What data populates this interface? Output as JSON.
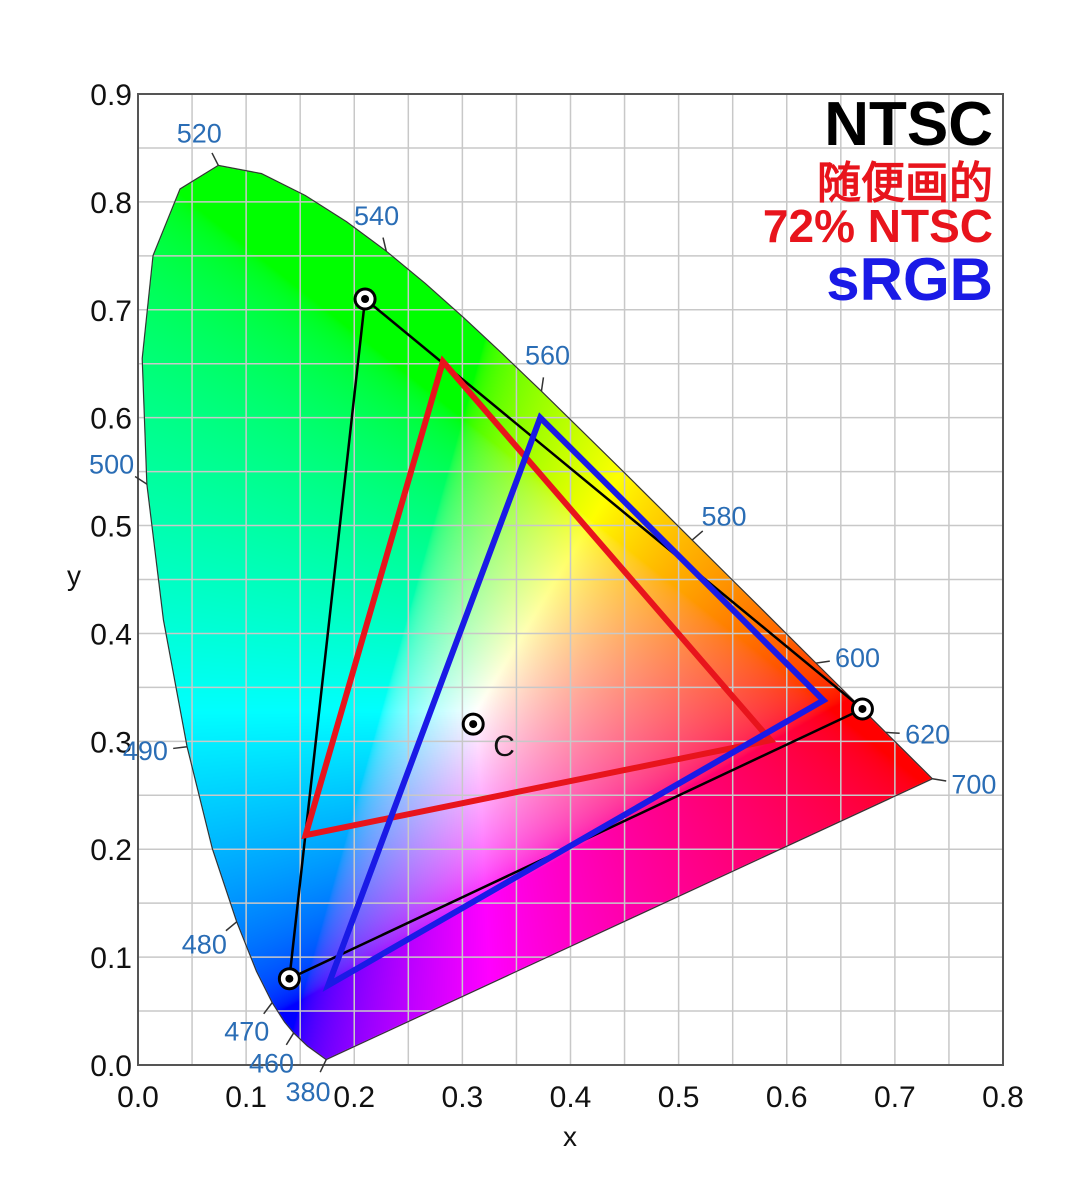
{
  "chart_data": {
    "type": "scatter",
    "title": "",
    "xlabel": "x",
    "ylabel": "y",
    "xlim": [
      0.0,
      0.8
    ],
    "ylim": [
      0.0,
      0.9
    ],
    "xticks": [
      "0.0",
      "0.1",
      "0.2",
      "0.3",
      "0.4",
      "0.5",
      "0.6",
      "0.7",
      "0.8"
    ],
    "yticks": [
      "0.0",
      "0.1",
      "0.2",
      "0.3",
      "0.4",
      "0.5",
      "0.6",
      "0.7",
      "0.8",
      "0.9"
    ],
    "grid": true,
    "grid_step": 0.05,
    "spectral_locus": [
      [
        380,
        0.1741,
        0.005
      ],
      [
        450,
        0.1566,
        0.0177
      ],
      [
        460,
        0.144,
        0.0297
      ],
      [
        465,
        0.1355,
        0.0399
      ],
      [
        470,
        0.1241,
        0.0578
      ],
      [
        475,
        0.1096,
        0.0868
      ],
      [
        480,
        0.0913,
        0.1327
      ],
      [
        485,
        0.0687,
        0.2007
      ],
      [
        490,
        0.0454,
        0.295
      ],
      [
        495,
        0.0235,
        0.4127
      ],
      [
        500,
        0.0082,
        0.5384
      ],
      [
        505,
        0.0039,
        0.6548
      ],
      [
        510,
        0.0139,
        0.7502
      ],
      [
        515,
        0.0389,
        0.812
      ],
      [
        520,
        0.0743,
        0.8338
      ],
      [
        525,
        0.1142,
        0.8262
      ],
      [
        530,
        0.1547,
        0.8059
      ],
      [
        535,
        0.1929,
        0.7816
      ],
      [
        540,
        0.2296,
        0.7543
      ],
      [
        545,
        0.2658,
        0.7243
      ],
      [
        550,
        0.3016,
        0.6923
      ],
      [
        555,
        0.3373,
        0.6589
      ],
      [
        560,
        0.3731,
        0.6245
      ],
      [
        565,
        0.4087,
        0.5896
      ],
      [
        570,
        0.4441,
        0.5547
      ],
      [
        575,
        0.4788,
        0.5202
      ],
      [
        580,
        0.5125,
        0.4866
      ],
      [
        585,
        0.5448,
        0.4544
      ],
      [
        590,
        0.5752,
        0.4242
      ],
      [
        595,
        0.6029,
        0.3965
      ],
      [
        600,
        0.627,
        0.3725
      ],
      [
        605,
        0.6482,
        0.3514
      ],
      [
        610,
        0.6658,
        0.334
      ],
      [
        620,
        0.6915,
        0.3083
      ],
      [
        630,
        0.7079,
        0.292
      ],
      [
        640,
        0.719,
        0.2809
      ],
      [
        650,
        0.726,
        0.274
      ],
      [
        700,
        0.7347,
        0.2653
      ]
    ],
    "wavelength_labels": [
      {
        "nm": 520,
        "text": "520"
      },
      {
        "nm": 540,
        "text": "540"
      },
      {
        "nm": 560,
        "text": "560"
      },
      {
        "nm": 580,
        "text": "580"
      },
      {
        "nm": 600,
        "text": "600"
      },
      {
        "nm": 620,
        "text": "620"
      },
      {
        "nm": 700,
        "text": "700"
      },
      {
        "nm": 500,
        "text": "500"
      },
      {
        "nm": 490,
        "text": "490"
      },
      {
        "nm": 480,
        "text": "480"
      },
      {
        "nm": 470,
        "text": "470"
      },
      {
        "nm": 460,
        "text": "460"
      },
      {
        "nm": 380,
        "text": "380"
      }
    ],
    "series": [
      {
        "name": "NTSC",
        "color": "#000000",
        "points": [
          [
            0.67,
            0.33
          ],
          [
            0.21,
            0.71
          ],
          [
            0.14,
            0.08
          ]
        ]
      },
      {
        "name": "随便画的 72% NTSC",
        "color": "#e8141c",
        "points": [
          [
            0.585,
            0.301
          ],
          [
            0.282,
            0.652
          ],
          [
            0.155,
            0.213
          ]
        ]
      },
      {
        "name": "sRGB",
        "color": "#1a1ae6",
        "points": [
          [
            0.634,
            0.338
          ],
          [
            0.372,
            0.6
          ],
          [
            0.176,
            0.074
          ]
        ]
      }
    ],
    "white_point": {
      "label": "C",
      "x": 0.31,
      "y": 0.316
    },
    "legend": {
      "placement": "top-right",
      "entries": [
        {
          "text": "NTSC",
          "color": "#000000"
        },
        {
          "text": "随便画的",
          "color": "#e8141c"
        },
        {
          "text": "72% NTSC",
          "color": "#e8141c"
        },
        {
          "text": "sRGB",
          "color": "#1a1ae6"
        }
      ]
    }
  }
}
